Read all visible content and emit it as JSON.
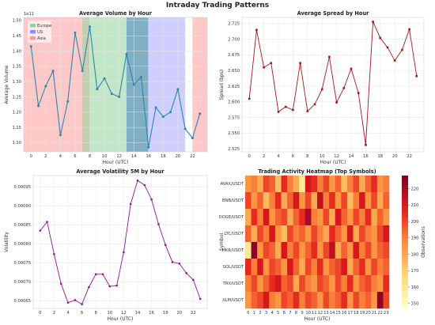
{
  "suptitle": "Intraday Trading Patterns",
  "hours": [
    0,
    1,
    2,
    3,
    4,
    5,
    6,
    7,
    8,
    9,
    10,
    11,
    12,
    13,
    14,
    15,
    16,
    17,
    18,
    19,
    20,
    21,
    22,
    23
  ],
  "chart_data": [
    {
      "type": "line",
      "title": "Average Volume by Hour",
      "xlabel": "Hour (UTC)",
      "ylabel": "Average Volume",
      "offset_text": "1e11",
      "ylim": [
        1.07,
        1.51
      ],
      "yticks": [
        1.1,
        1.15,
        1.2,
        1.25,
        1.3,
        1.35,
        1.4,
        1.45,
        1.5
      ],
      "ytick_labels": [
        "1.10",
        "1.15",
        "1.20",
        "1.25",
        "1.30",
        "1.35",
        "1.40",
        "1.45",
        "1.50"
      ],
      "xticks": [
        0,
        2,
        4,
        6,
        8,
        10,
        12,
        14,
        16,
        18,
        20,
        22
      ],
      "xlim": [
        -1,
        24
      ],
      "color": "#2e86ab",
      "values": [
        1.415,
        1.22,
        1.285,
        1.335,
        1.125,
        1.235,
        1.46,
        1.335,
        1.48,
        1.275,
        1.31,
        1.26,
        1.25,
        1.39,
        1.29,
        1.315,
        1.085,
        1.215,
        1.185,
        1.2,
        1.275,
        1.145,
        1.115,
        1.195
      ],
      "sessions": [
        {
          "name": "Asia",
          "start": -1,
          "end": 8,
          "color": "#ff9a9a"
        },
        {
          "name": "Europe",
          "start": 7,
          "end": 16,
          "color": "#8fd49a"
        },
        {
          "name": "US",
          "start": 13,
          "end": 16,
          "color": "#4a7fbf"
        },
        {
          "name": "US",
          "start": 16,
          "end": 21,
          "color": "#a8a8ff"
        },
        {
          "name": "Asia",
          "start": 22,
          "end": 24,
          "color": "#ff9a9a"
        }
      ],
      "legend": [
        {
          "label": "Europe",
          "color": "#8fd49a"
        },
        {
          "label": "US",
          "color": "#8d8dff"
        },
        {
          "label": "Asia",
          "color": "#ff9a9a"
        }
      ],
      "legend_position": "top-left"
    },
    {
      "type": "line",
      "title": "Average Spread by Hour",
      "xlabel": "Hour (UTC)",
      "ylabel": "Spread (bps)",
      "ylim": [
        2.52,
        2.735
      ],
      "yticks": [
        2.525,
        2.55,
        2.575,
        2.6,
        2.625,
        2.65,
        2.675,
        2.7,
        2.725
      ],
      "ytick_labels": [
        "2.525",
        "2.550",
        "2.575",
        "2.600",
        "2.625",
        "2.650",
        "2.675",
        "2.700",
        "2.725"
      ],
      "xticks": [
        0,
        2,
        4,
        6,
        8,
        10,
        12,
        14,
        16,
        18,
        20,
        22
      ],
      "xlim": [
        -1,
        24
      ],
      "color": "#a4161a",
      "values": [
        2.605,
        2.715,
        2.655,
        2.662,
        2.584,
        2.592,
        2.587,
        2.662,
        2.585,
        2.596,
        2.62,
        2.672,
        2.599,
        2.622,
        2.653,
        2.614,
        2.531,
        2.728,
        2.702,
        2.687,
        2.666,
        2.683,
        2.716,
        2.641
      ]
    },
    {
      "type": "line",
      "title": "Average Volatility 5M by Hour",
      "xlabel": "Hour (UTC)",
      "ylabel": "Volatility",
      "ylim": [
        0.00063,
        0.00098
      ],
      "yticks": [
        0.00065,
        0.0007,
        0.00075,
        0.0008,
        0.00085,
        0.0009,
        0.00095
      ],
      "ytick_labels": [
        "0.00065",
        "0.00070",
        "0.00075",
        "0.00080",
        "0.00085",
        "0.00090",
        "0.00095"
      ],
      "xticks": [
        0,
        2,
        4,
        6,
        8,
        10,
        12,
        14,
        16,
        18,
        20,
        22
      ],
      "xlim": [
        -1,
        24
      ],
      "color": "#8a178a",
      "values": [
        0.000835,
        0.000858,
        0.000773,
        0.000695,
        0.000645,
        0.000652,
        0.000641,
        0.000686,
        0.00072,
        0.00072,
        0.000688,
        0.00069,
        0.000778,
        0.000905,
        0.000967,
        0.000955,
        0.000917,
        0.000852,
        0.000797,
        0.000752,
        0.000748,
        0.000723,
        0.000705,
        0.000655
      ]
    },
    {
      "type": "heatmap",
      "title": "Trading Activity Heatmap (Top Symbols)",
      "xlabel": "Hour (UTC)",
      "ylabel": "Symbol",
      "colorbar_label": "Observations",
      "vmin": 147,
      "vmax": 228,
      "colorbar_ticks": [
        150,
        160,
        170,
        180,
        190,
        200,
        210,
        220
      ],
      "rows": [
        "AVAX/USDT",
        "BNB/USDT",
        "DOGE/USDT",
        "LTC/USDT",
        "MKR/USDT",
        "SOL/USDT",
        "TRX/USDT",
        "XLM/USDT"
      ],
      "columns": [
        0,
        1,
        2,
        3,
        4,
        5,
        6,
        7,
        8,
        9,
        10,
        11,
        12,
        13,
        14,
        15,
        16,
        17,
        18,
        19,
        20,
        21,
        22,
        23
      ],
      "values": [
        [
          185,
          190,
          180,
          200,
          195,
          175,
          205,
          190,
          180,
          160,
          210,
          205,
          190,
          200,
          185,
          195,
          175,
          190,
          200,
          180,
          195,
          205,
          185,
          190
        ],
        [
          200,
          185,
          195,
          175,
          190,
          205,
          180,
          195,
          210,
          185,
          200,
          180,
          215,
          190,
          205,
          185,
          200,
          175,
          190,
          210,
          185,
          200,
          180,
          195
        ],
        [
          180,
          205,
          190,
          210,
          185,
          195,
          200,
          180,
          195,
          205,
          220,
          190,
          185,
          200,
          180,
          210,
          195,
          185,
          200,
          190,
          205,
          180,
          195,
          185
        ],
        [
          195,
          180,
          200,
          190,
          210,
          185,
          175,
          200,
          190,
          195,
          185,
          200,
          190,
          180,
          205,
          195,
          185,
          210,
          180,
          200,
          190,
          185,
          200,
          210
        ],
        [
          160,
          225,
          185,
          200,
          195,
          180,
          210,
          190,
          200,
          185,
          195,
          205,
          185,
          200,
          215,
          180,
          195,
          185,
          210,
          190,
          200,
          185,
          195,
          200
        ],
        [
          205,
          190,
          210,
          185,
          200,
          195,
          185,
          210,
          195,
          180,
          200,
          190,
          205,
          185,
          195,
          200,
          210,
          180,
          195,
          205,
          185,
          200,
          190,
          195
        ],
        [
          190,
          200,
          185,
          195,
          205,
          210,
          195,
          200,
          180,
          200,
          190,
          185,
          200,
          195,
          185,
          200,
          190,
          205,
          185,
          195,
          200,
          190,
          185,
          205
        ],
        [
          185,
          195,
          200,
          210,
          190,
          185,
          200,
          195,
          205,
          190,
          200,
          195,
          185,
          200,
          190,
          195,
          205,
          185,
          200,
          190,
          195,
          185,
          225,
          200
        ]
      ]
    }
  ]
}
